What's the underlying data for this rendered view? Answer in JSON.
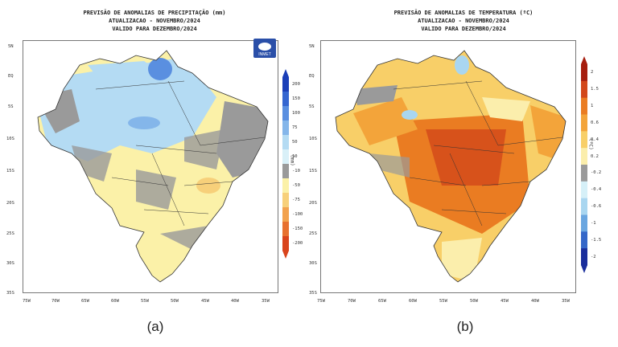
{
  "panel_a": {
    "title_lines": [
      "PREVISÃO DE ANOMALIAS DE PRECIPITAÇÃO (mm)",
      "ATUALIZACAO - NOVEMBRO/2024",
      "VALIDO PARA DEZEMBRO/2024"
    ],
    "caption": "(a)",
    "unit": "(mm)",
    "colorbar": [
      "200",
      "150",
      "100",
      "75",
      "50",
      "10",
      "-10",
      "-50",
      "-75",
      "-100",
      "-150",
      "-200"
    ],
    "colors": [
      "#1b3fb8",
      "#3566d0",
      "#5a8fe0",
      "#84b6ea",
      "#b4dbf3",
      "#d9f0f8",
      "#9a9a9a",
      "#fbf1a8",
      "#f7d07a",
      "#f2a24e",
      "#e77130",
      "#d9441c"
    ],
    "logo_text": "INMET"
  },
  "panel_b": {
    "title_lines": [
      "PREVISÃO DE ANOMALIAS DE TEMPERATURA (ºC)",
      "ATUALIZACAO - NOVEMBRO/2024",
      "VALIDO PARA DEZEMBRO/2024"
    ],
    "caption": "(b)",
    "unit": "(ºC)",
    "colorbar": [
      "2",
      "1.5",
      "1",
      "0.6",
      "0.4",
      "0.2",
      "-0.2",
      "-0.4",
      "-0.6",
      "-1",
      "-1.5",
      "-2"
    ],
    "colors": [
      "#a61d0e",
      "#d2471a",
      "#ea7c22",
      "#f3a43a",
      "#f8cf68",
      "#fbeeac",
      "#9a9a9a",
      "#d6f0f8",
      "#a9d6f0",
      "#6aa6e0",
      "#3567c8",
      "#1a2e9c"
    ]
  },
  "axes": {
    "lat_ticks": [
      "5N",
      "EQ",
      "5S",
      "10S",
      "15S",
      "20S",
      "25S",
      "30S",
      "35S"
    ],
    "lon_ticks": [
      "75W",
      "70W",
      "65W",
      "60W",
      "55W",
      "50W",
      "45W",
      "40W",
      "35W"
    ]
  }
}
